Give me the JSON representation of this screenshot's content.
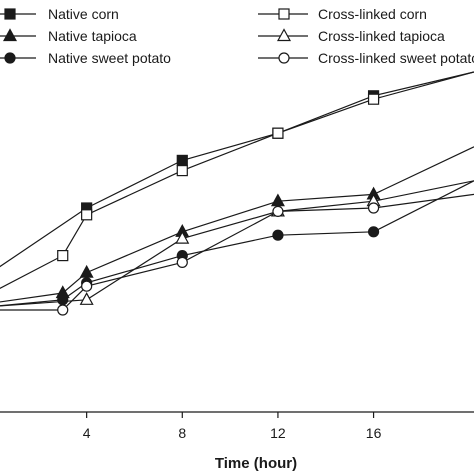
{
  "chart_data": {
    "type": "line",
    "title": "",
    "xlabel": "Time (hour)",
    "ylabel": "",
    "xlim": [
      0,
      20.2
    ],
    "ylim": [
      0,
      100
    ],
    "x_ticks": [
      "4",
      "8",
      "12",
      "16"
    ],
    "grid": false,
    "legend_placement": "top",
    "series": [
      {
        "name": "Native corn",
        "marker": "square",
        "filled": true,
        "x": [
          0,
          4,
          8,
          12,
          16,
          20.2
        ],
        "y": [
          41,
          60,
          74,
          82,
          93,
          100
        ]
      },
      {
        "name": "Cross-linked corn",
        "marker": "square",
        "filled": false,
        "x": [
          0,
          3,
          4,
          8,
          12,
          16,
          20.2
        ],
        "y": [
          35,
          46,
          58,
          71,
          82,
          92,
          100
        ]
      },
      {
        "name": "Native tapioca",
        "marker": "triangle",
        "filled": true,
        "x": [
          0,
          3,
          4,
          8,
          12,
          16,
          20.2
        ],
        "y": [
          32,
          35,
          41,
          53,
          62,
          64,
          78
        ]
      },
      {
        "name": "Cross-linked tapioca",
        "marker": "triangle",
        "filled": false,
        "x": [
          0,
          4,
          8,
          12,
          16,
          20.2
        ],
        "y": [
          31,
          33,
          51,
          59,
          62,
          68
        ]
      },
      {
        "name": "Native sweet potato",
        "marker": "circle",
        "filled": true,
        "x": [
          0,
          3,
          4,
          8,
          12,
          16,
          20.2
        ],
        "y": [
          31,
          33,
          38,
          46,
          52,
          53,
          68
        ]
      },
      {
        "name": "Cross-linked sweet potato",
        "marker": "circle",
        "filled": false,
        "x": [
          0,
          3,
          4,
          8,
          12,
          16,
          20.2
        ],
        "y": [
          30,
          30,
          37,
          44,
          59,
          60,
          64
        ]
      }
    ]
  }
}
